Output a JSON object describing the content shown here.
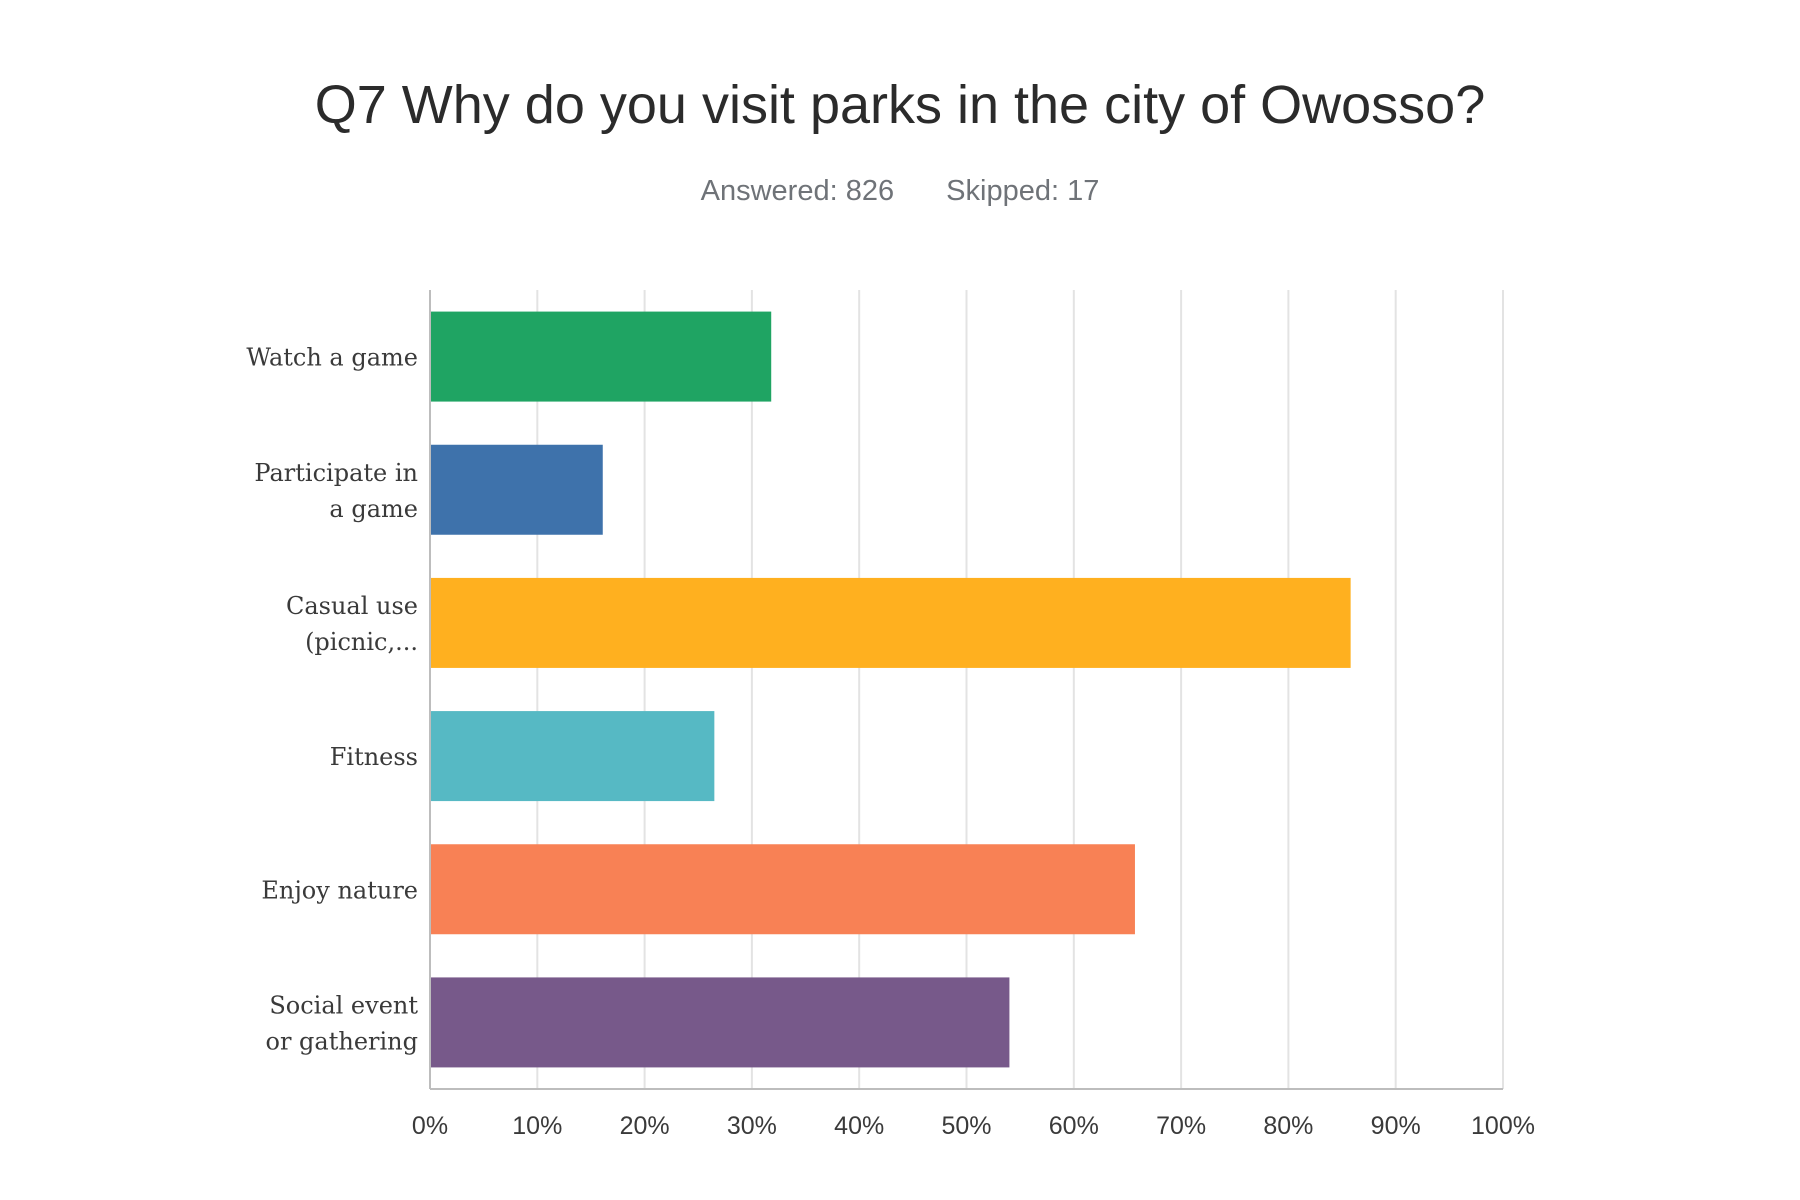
{
  "chart_data": {
    "type": "bar",
    "orientation": "horizontal",
    "title": "Q7 Why do you visit parks in the city of Owosso?",
    "answered_label": "Answered: 826",
    "skipped_label": "Skipped: 17",
    "categories": [
      [
        "Watch a game"
      ],
      [
        "Participate in",
        "a game"
      ],
      [
        "Casual use",
        "(picnic,..."
      ],
      [
        "Fitness"
      ],
      [
        "Enjoy nature"
      ],
      [
        "Social event",
        "or gathering"
      ]
    ],
    "values": [
      31.8,
      16.1,
      85.8,
      26.5,
      65.7,
      54.0
    ],
    "colors": [
      "#1fa463",
      "#3e72ab",
      "#ffb01f",
      "#56b9c4",
      "#f88155",
      "#77598a"
    ],
    "xlim": [
      0,
      100
    ],
    "x_ticks": [
      "0%",
      "10%",
      "20%",
      "30%",
      "40%",
      "50%",
      "60%",
      "70%",
      "80%",
      "90%",
      "100%"
    ],
    "grid": true,
    "xlabel": "",
    "ylabel": ""
  }
}
